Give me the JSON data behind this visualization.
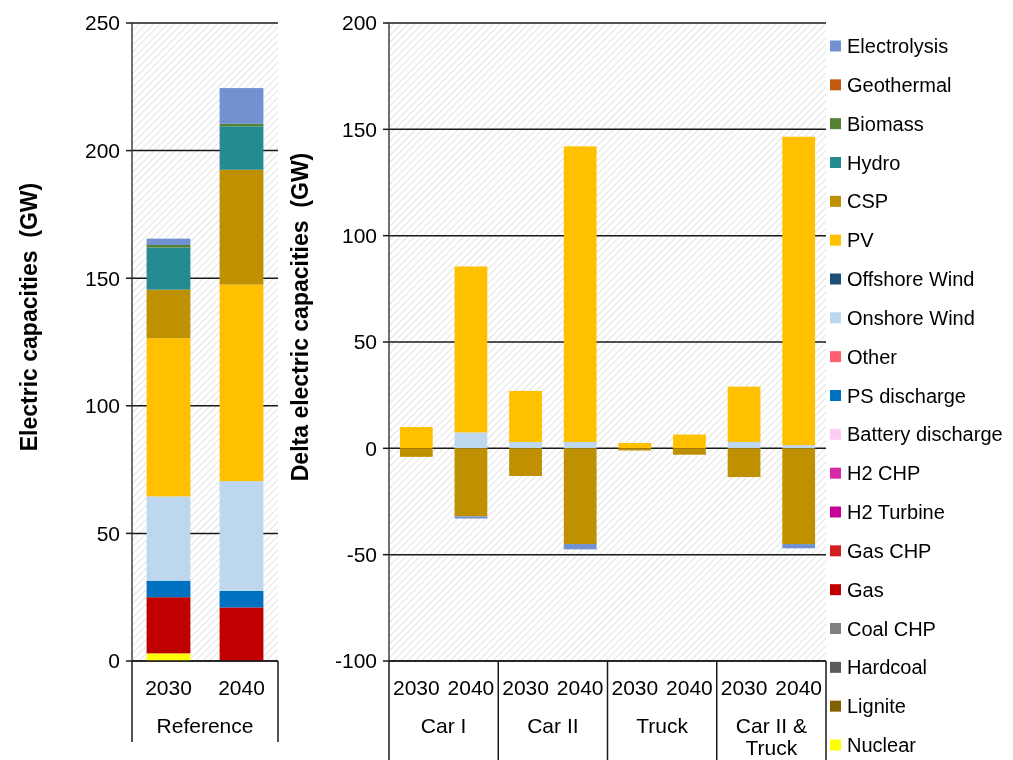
{
  "chart_data": [
    {
      "type": "bar",
      "stacked": true,
      "ylabel": "Electric capacities  (GW)",
      "categories": [
        "2030",
        "2040"
      ],
      "annotations": [
        "Reference"
      ],
      "ylim": [
        0,
        250
      ],
      "yticks": [
        0,
        50,
        100,
        150,
        200,
        250
      ],
      "grid": "y",
      "series": [
        {
          "color": "#ffff00",
          "values": [
            3,
            null
          ]
        },
        {
          "color": "#c00000",
          "values": [
            22,
            21
          ]
        },
        {
          "color": "#0070c0",
          "values": [
            6.5,
            6.5
          ]
        },
        {
          "color": "#bdd7ee",
          "values": [
            33,
            43
          ]
        },
        {
          "color": "#ffc000",
          "values": [
            62,
            77
          ]
        },
        {
          "color": "#bf9000",
          "values": [
            19,
            45
          ]
        },
        {
          "color": "#258b93",
          "values": [
            16.5,
            17
          ]
        },
        {
          "color": "#548235",
          "values": [
            1,
            1
          ]
        },
        {
          "color": "#7191d1",
          "values": [
            2.5,
            14
          ]
        }
      ]
    },
    {
      "type": "bar",
      "stacked": true,
      "ylabel": "Delta electric capacities  (GW)",
      "categories": [
        "2030",
        "2040",
        "2030",
        "2040",
        "2030",
        "2040",
        "2030",
        "2040"
      ],
      "annotations": [
        "Car I",
        "Car II",
        "Truck",
        "Car II & Truck"
      ],
      "ylim": [
        -100,
        200
      ],
      "yticks": [
        -100,
        -50,
        0,
        50,
        100,
        150,
        200
      ],
      "grid": "y",
      "legend": "right",
      "series": [
        {
          "name": "Nuclear",
          "color": "#ffff00",
          "values": [
            null,
            null,
            null,
            null,
            null,
            null,
            null,
            null
          ]
        },
        {
          "name": "Lignite",
          "color": "#806000",
          "values": [
            null,
            null,
            null,
            null,
            null,
            null,
            null,
            null
          ]
        },
        {
          "name": "Hardcoal",
          "color": "#595959",
          "values": [
            null,
            null,
            null,
            null,
            null,
            null,
            null,
            null
          ]
        },
        {
          "name": "Coal CHP",
          "color": "#7f7f7f",
          "values": [
            null,
            null,
            null,
            null,
            null,
            null,
            null,
            null
          ]
        },
        {
          "name": "Gas",
          "color": "#c00000",
          "values": [
            null,
            null,
            null,
            null,
            null,
            null,
            null,
            null
          ]
        },
        {
          "name": "Gas CHP",
          "color": "#d11f1f",
          "values": [
            null,
            null,
            null,
            null,
            null,
            null,
            null,
            null
          ]
        },
        {
          "name": "H2 Turbine",
          "color": "#c8009a",
          "values": [
            null,
            null,
            null,
            null,
            null,
            null,
            null,
            null
          ]
        },
        {
          "name": "H2 CHP",
          "color": "#d62aa8",
          "values": [
            null,
            null,
            null,
            null,
            null,
            null,
            null,
            null
          ]
        },
        {
          "name": "Battery discharge",
          "color": "#ffccf5",
          "values": [
            null,
            null,
            null,
            null,
            null,
            null,
            null,
            null
          ]
        },
        {
          "name": "PS discharge",
          "color": "#0070c0",
          "values": [
            null,
            null,
            null,
            null,
            null,
            null,
            null,
            null
          ]
        },
        {
          "name": "Other",
          "color": "#ff5f6f",
          "values": [
            null,
            null,
            null,
            null,
            null,
            null,
            null,
            null
          ]
        },
        {
          "name": "Onshore Wind",
          "color": "#bdd7ee",
          "values": [
            null,
            7.5,
            3,
            3,
            null,
            null,
            3,
            1.5
          ]
        },
        {
          "name": "Offshore Wind",
          "color": "#1f4e79",
          "values": [
            null,
            null,
            null,
            null,
            null,
            null,
            null,
            null
          ]
        },
        {
          "name": "PV",
          "color": "#ffc000",
          "values": [
            10,
            78,
            24,
            139,
            2.5,
            6.5,
            26,
            145
          ]
        },
        {
          "name": "CSP",
          "color": "#bf9000",
          "values": [
            -4,
            -32,
            -13,
            -45,
            -1,
            -3,
            -13.5,
            -45
          ]
        },
        {
          "name": "Hydro",
          "color": "#258b93",
          "values": [
            null,
            null,
            null,
            null,
            null,
            null,
            null,
            null
          ]
        },
        {
          "name": "Biomass",
          "color": "#548235",
          "values": [
            null,
            null,
            null,
            null,
            null,
            null,
            null,
            null
          ]
        },
        {
          "name": "Geothermal",
          "color": "#c55a11",
          "values": [
            null,
            null,
            null,
            null,
            null,
            null,
            null,
            null
          ]
        },
        {
          "name": "Electrolysis",
          "color": "#7191d1",
          "values": [
            null,
            -1,
            null,
            -2.5,
            null,
            null,
            null,
            -2
          ]
        }
      ]
    }
  ]
}
